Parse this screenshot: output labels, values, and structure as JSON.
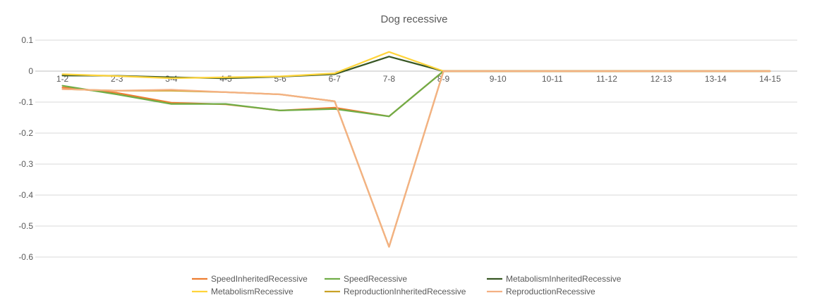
{
  "chart_data": {
    "type": "line",
    "title": "Dog recessive",
    "xlabel": "",
    "ylabel": "",
    "ylim": [
      -0.6,
      0.1
    ],
    "yticks": [
      0.1,
      0,
      -0.1,
      -0.2,
      -0.3,
      -0.4,
      -0.5,
      -0.6
    ],
    "ytick_labels": [
      "0.1",
      "0",
      "-0.1",
      "-0.2",
      "-0.3",
      "-0.4",
      "-0.5",
      "-0.6"
    ],
    "grid": true,
    "legend_position": "bottom",
    "categories": [
      "1-2",
      "2-3",
      "3-4",
      "4-5",
      "5-6",
      "6-7",
      "7-8",
      "8-9",
      "9-10",
      "10-11",
      "11-12",
      "12-13",
      "13-14",
      "14-15"
    ],
    "series": [
      {
        "name": "SpeedInheritedRecessive",
        "color": "#ED7D31",
        "values": [
          -0.053,
          -0.07,
          -0.102,
          -0.107,
          -0.127,
          -0.118,
          -0.146,
          0,
          0,
          0,
          0,
          0,
          0,
          0
        ]
      },
      {
        "name": "SpeedRecessive",
        "color": "#70AD47",
        "values": [
          -0.047,
          -0.075,
          -0.106,
          -0.106,
          -0.127,
          -0.122,
          -0.146,
          0,
          0,
          0,
          0,
          0,
          0,
          0
        ]
      },
      {
        "name": "MetabolismInheritedRecessive",
        "color": "#375623",
        "values": [
          -0.014,
          -0.015,
          -0.02,
          -0.023,
          -0.018,
          -0.01,
          0.047,
          0,
          0,
          0,
          0,
          0,
          0,
          0
        ]
      },
      {
        "name": "MetabolismRecessive",
        "color": "#FFD43B",
        "values": [
          -0.01,
          -0.016,
          -0.023,
          -0.02,
          -0.017,
          -0.007,
          0.062,
          0,
          0,
          0,
          0,
          0,
          0,
          0
        ]
      },
      {
        "name": "ReproductionInheritedRecessive",
        "color": "#C9A227",
        "values": [
          -0.058,
          -0.063,
          -0.063,
          -0.068,
          -0.075,
          -0.097,
          -0.567,
          0,
          0,
          0,
          0,
          0,
          0,
          0
        ]
      },
      {
        "name": "ReproductionRecessive",
        "color": "#F4B183",
        "values": [
          -0.058,
          -0.063,
          -0.06,
          -0.068,
          -0.075,
          -0.097,
          -0.567,
          0,
          0,
          0,
          0,
          0,
          0,
          0
        ]
      }
    ]
  }
}
